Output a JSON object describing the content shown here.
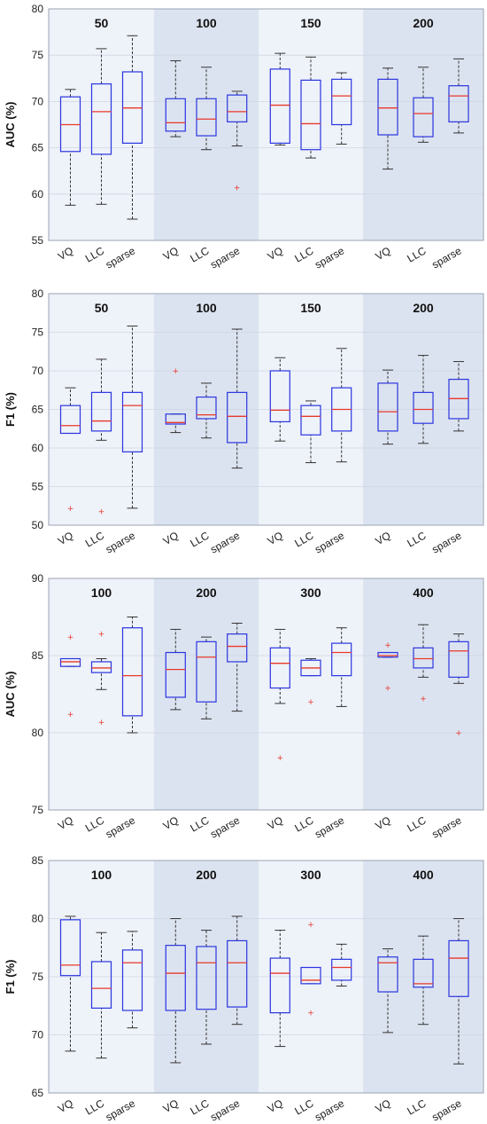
{
  "chart_data": [
    {
      "type": "box",
      "ylabel": "AUC (%)",
      "ylim": [
        55,
        80
      ],
      "yticks": [
        55,
        60,
        65,
        70,
        75,
        80
      ],
      "groups": [
        "50",
        "100",
        "150",
        "200"
      ],
      "methods": [
        "VQ",
        "LLC",
        "sparse"
      ],
      "boxes": [
        {
          "group": "50",
          "method": "VQ",
          "min": 58.8,
          "q1": 64.6,
          "median": 67.5,
          "q3": 70.5,
          "max": 71.3,
          "outliers": []
        },
        {
          "group": "50",
          "method": "LLC",
          "min": 58.9,
          "q1": 64.3,
          "median": 68.9,
          "q3": 71.9,
          "max": 75.7,
          "outliers": []
        },
        {
          "group": "50",
          "method": "sparse",
          "min": 57.3,
          "q1": 65.5,
          "median": 69.3,
          "q3": 73.2,
          "max": 77.1,
          "outliers": []
        },
        {
          "group": "100",
          "method": "VQ",
          "min": 66.2,
          "q1": 66.8,
          "median": 67.7,
          "q3": 70.3,
          "max": 74.4,
          "outliers": []
        },
        {
          "group": "100",
          "method": "LLC",
          "min": 64.8,
          "q1": 66.3,
          "median": 68.1,
          "q3": 70.3,
          "max": 73.7,
          "outliers": []
        },
        {
          "group": "100",
          "method": "sparse",
          "min": 65.2,
          "q1": 67.8,
          "median": 68.9,
          "q3": 70.7,
          "max": 71.1,
          "outliers": [
            60.7
          ]
        },
        {
          "group": "150",
          "method": "VQ",
          "min": 65.3,
          "q1": 65.5,
          "median": 69.6,
          "q3": 73.5,
          "max": 75.2,
          "outliers": []
        },
        {
          "group": "150",
          "method": "LLC",
          "min": 63.9,
          "q1": 64.8,
          "median": 67.6,
          "q3": 72.3,
          "max": 74.8,
          "outliers": []
        },
        {
          "group": "150",
          "method": "sparse",
          "min": 65.4,
          "q1": 67.5,
          "median": 70.6,
          "q3": 72.4,
          "max": 73.1,
          "outliers": []
        },
        {
          "group": "200",
          "method": "VQ",
          "min": 62.7,
          "q1": 66.4,
          "median": 69.3,
          "q3": 72.4,
          "max": 73.6,
          "outliers": []
        },
        {
          "group": "200",
          "method": "LLC",
          "min": 65.6,
          "q1": 66.2,
          "median": 68.7,
          "q3": 70.4,
          "max": 73.7,
          "outliers": []
        },
        {
          "group": "200",
          "method": "sparse",
          "min": 66.6,
          "q1": 67.8,
          "median": 70.6,
          "q3": 71.7,
          "max": 74.6,
          "outliers": []
        }
      ]
    },
    {
      "type": "box",
      "ylabel": "F1 (%)",
      "ylim": [
        50,
        80
      ],
      "yticks": [
        50,
        55,
        60,
        65,
        70,
        75,
        80
      ],
      "groups": [
        "50",
        "100",
        "150",
        "200"
      ],
      "methods": [
        "VQ",
        "LLC",
        "sparse"
      ],
      "boxes": [
        {
          "group": "50",
          "method": "VQ",
          "min": 61.9,
          "q1": 61.9,
          "median": 62.9,
          "q3": 65.5,
          "max": 67.8,
          "outliers": [
            52.2
          ]
        },
        {
          "group": "50",
          "method": "LLC",
          "min": 61.0,
          "q1": 62.2,
          "median": 63.5,
          "q3": 67.2,
          "max": 71.5,
          "outliers": [
            51.8
          ]
        },
        {
          "group": "50",
          "method": "sparse",
          "min": 52.2,
          "q1": 59.5,
          "median": 65.5,
          "q3": 67.2,
          "max": 75.8,
          "outliers": []
        },
        {
          "group": "100",
          "method": "VQ",
          "min": 62.0,
          "q1": 63.1,
          "median": 63.3,
          "q3": 64.4,
          "max": 64.4,
          "outliers": [
            70.0
          ]
        },
        {
          "group": "100",
          "method": "LLC",
          "min": 61.3,
          "q1": 63.8,
          "median": 64.3,
          "q3": 66.6,
          "max": 68.4,
          "outliers": []
        },
        {
          "group": "100",
          "method": "sparse",
          "min": 57.4,
          "q1": 60.7,
          "median": 64.1,
          "q3": 67.2,
          "max": 75.4,
          "outliers": []
        },
        {
          "group": "150",
          "method": "VQ",
          "min": 60.9,
          "q1": 63.4,
          "median": 64.9,
          "q3": 70.0,
          "max": 71.7,
          "outliers": []
        },
        {
          "group": "150",
          "method": "LLC",
          "min": 58.1,
          "q1": 61.7,
          "median": 64.1,
          "q3": 65.5,
          "max": 66.1,
          "outliers": []
        },
        {
          "group": "150",
          "method": "sparse",
          "min": 58.2,
          "q1": 62.2,
          "median": 65.0,
          "q3": 67.8,
          "max": 72.9,
          "outliers": []
        },
        {
          "group": "200",
          "method": "VQ",
          "min": 60.5,
          "q1": 62.2,
          "median": 64.7,
          "q3": 68.4,
          "max": 70.1,
          "outliers": []
        },
        {
          "group": "200",
          "method": "LLC",
          "min": 60.6,
          "q1": 63.2,
          "median": 65.0,
          "q3": 67.2,
          "max": 72.0,
          "outliers": []
        },
        {
          "group": "200",
          "method": "sparse",
          "min": 62.2,
          "q1": 63.8,
          "median": 66.4,
          "q3": 68.9,
          "max": 71.2,
          "outliers": []
        }
      ]
    },
    {
      "type": "box",
      "ylabel": "AUC (%)",
      "ylim": [
        75,
        90
      ],
      "yticks": [
        75,
        80,
        85,
        90
      ],
      "groups": [
        "100",
        "200",
        "300",
        "400"
      ],
      "methods": [
        "VQ",
        "LLC",
        "sparse"
      ],
      "boxes": [
        {
          "group": "100",
          "method": "VQ",
          "min": 84.3,
          "q1": 84.3,
          "median": 84.6,
          "q3": 84.8,
          "max": 84.8,
          "outliers": [
            86.2,
            81.2
          ]
        },
        {
          "group": "100",
          "method": "LLC",
          "min": 82.8,
          "q1": 83.9,
          "median": 84.2,
          "q3": 84.6,
          "max": 84.8,
          "outliers": [
            86.4,
            80.7
          ]
        },
        {
          "group": "100",
          "method": "sparse",
          "min": 80.0,
          "q1": 81.1,
          "median": 83.7,
          "q3": 86.8,
          "max": 87.5,
          "outliers": []
        },
        {
          "group": "200",
          "method": "VQ",
          "min": 81.5,
          "q1": 82.3,
          "median": 84.1,
          "q3": 85.2,
          "max": 86.7,
          "outliers": []
        },
        {
          "group": "200",
          "method": "LLC",
          "min": 80.9,
          "q1": 82.0,
          "median": 84.9,
          "q3": 85.9,
          "max": 86.2,
          "outliers": []
        },
        {
          "group": "200",
          "method": "sparse",
          "min": 81.4,
          "q1": 84.6,
          "median": 85.6,
          "q3": 86.4,
          "max": 87.1,
          "outliers": []
        },
        {
          "group": "300",
          "method": "VQ",
          "min": 81.9,
          "q1": 82.9,
          "median": 84.5,
          "q3": 85.5,
          "max": 86.7,
          "outliers": [
            78.4
          ]
        },
        {
          "group": "300",
          "method": "LLC",
          "min": 83.7,
          "q1": 83.7,
          "median": 84.2,
          "q3": 84.7,
          "max": 84.8,
          "outliers": [
            82.0
          ]
        },
        {
          "group": "300",
          "method": "sparse",
          "min": 81.7,
          "q1": 83.7,
          "median": 85.2,
          "q3": 85.8,
          "max": 86.8,
          "outliers": []
        },
        {
          "group": "400",
          "method": "VQ",
          "min": 84.9,
          "q1": 84.9,
          "median": 85.0,
          "q3": 85.2,
          "max": 85.2,
          "outliers": [
            85.7,
            82.9
          ]
        },
        {
          "group": "400",
          "method": "LLC",
          "min": 83.6,
          "q1": 84.2,
          "median": 84.8,
          "q3": 85.5,
          "max": 87.0,
          "outliers": [
            82.2
          ]
        },
        {
          "group": "400",
          "method": "sparse",
          "min": 83.2,
          "q1": 83.6,
          "median": 85.3,
          "q3": 85.9,
          "max": 86.4,
          "outliers": [
            80.0
          ]
        }
      ]
    },
    {
      "type": "box",
      "ylabel": "F1 (%)",
      "ylim": [
        65,
        85
      ],
      "yticks": [
        65,
        70,
        75,
        80,
        85
      ],
      "groups": [
        "100",
        "200",
        "300",
        "400"
      ],
      "methods": [
        "VQ",
        "LLC",
        "sparse"
      ],
      "boxes": [
        {
          "group": "100",
          "method": "VQ",
          "min": 68.6,
          "q1": 75.1,
          "median": 76.0,
          "q3": 79.9,
          "max": 80.2,
          "outliers": []
        },
        {
          "group": "100",
          "method": "LLC",
          "min": 68.0,
          "q1": 72.3,
          "median": 74.0,
          "q3": 76.3,
          "max": 78.8,
          "outliers": []
        },
        {
          "group": "100",
          "method": "sparse",
          "min": 70.6,
          "q1": 72.1,
          "median": 76.2,
          "q3": 77.3,
          "max": 78.9,
          "outliers": []
        },
        {
          "group": "200",
          "method": "VQ",
          "min": 67.6,
          "q1": 72.1,
          "median": 75.3,
          "q3": 77.7,
          "max": 80.0,
          "outliers": []
        },
        {
          "group": "200",
          "method": "LLC",
          "min": 69.2,
          "q1": 72.2,
          "median": 76.2,
          "q3": 77.6,
          "max": 79.0,
          "outliers": []
        },
        {
          "group": "200",
          "method": "sparse",
          "min": 70.9,
          "q1": 72.4,
          "median": 76.2,
          "q3": 78.1,
          "max": 80.2,
          "outliers": []
        },
        {
          "group": "300",
          "method": "VQ",
          "min": 69.0,
          "q1": 71.9,
          "median": 75.3,
          "q3": 76.6,
          "max": 79.0,
          "outliers": []
        },
        {
          "group": "300",
          "method": "LLC",
          "min": 74.4,
          "q1": 74.4,
          "median": 74.7,
          "q3": 75.8,
          "max": 75.8,
          "outliers": [
            79.5,
            71.9
          ]
        },
        {
          "group": "300",
          "method": "sparse",
          "min": 74.2,
          "q1": 74.7,
          "median": 75.8,
          "q3": 76.5,
          "max": 77.8,
          "outliers": []
        },
        {
          "group": "400",
          "method": "VQ",
          "min": 70.2,
          "q1": 73.7,
          "median": 76.2,
          "q3": 76.7,
          "max": 77.4,
          "outliers": []
        },
        {
          "group": "400",
          "method": "LLC",
          "min": 70.9,
          "q1": 74.1,
          "median": 74.4,
          "q3": 76.5,
          "max": 78.5,
          "outliers": []
        },
        {
          "group": "400",
          "method": "sparse",
          "min": 67.5,
          "q1": 73.3,
          "median": 76.6,
          "q3": 78.1,
          "max": 80.0,
          "outliers": []
        }
      ]
    }
  ],
  "colors": {
    "box": "#2a35e0",
    "median": "#e8382c",
    "whisker": "#333333",
    "outlier": "#e8382c",
    "panel_light": "#eef2f9",
    "panel_dark": "#dce3f0"
  }
}
